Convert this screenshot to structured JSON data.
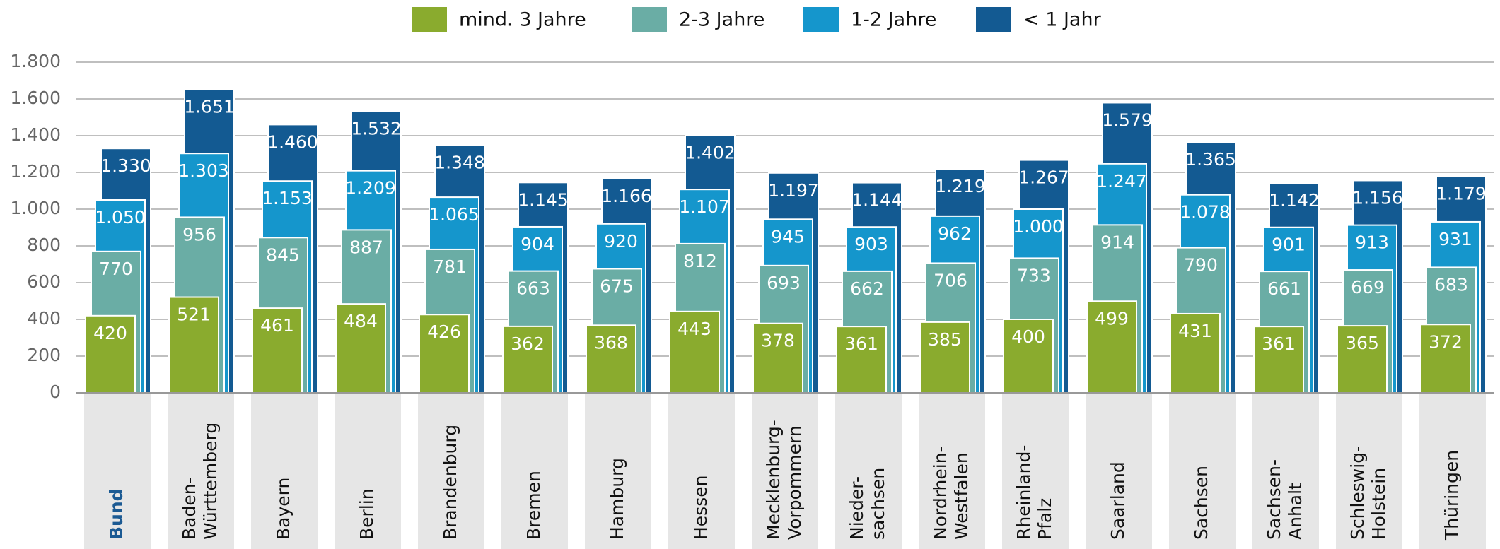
{
  "chart_data": {
    "type": "bar",
    "categories": [
      "Bund",
      "Baden-Württemberg",
      "Bayern",
      "Berlin",
      "Brandenburg",
      "Bremen",
      "Hamburg",
      "Hessen",
      "Mecklenburg-Vorpommern",
      "Nieder-sachsen",
      "Nordrhein-Westfalen",
      "Rheinland-Pfalz",
      "Saarland",
      "Sachsen",
      "Sachsen-Anhalt",
      "Schleswig-Holstein",
      "Thüringen"
    ],
    "series": [
      {
        "name": "mind. 3 Jahre",
        "color": "#8aab2e",
        "values": [
          420,
          521,
          461,
          484,
          426,
          362,
          368,
          443,
          378,
          361,
          385,
          400,
          499,
          431,
          361,
          365,
          372
        ],
        "value_labels": [
          "420",
          "521",
          "461",
          "484",
          "426",
          "362",
          "368",
          "443",
          "378",
          "361",
          "385",
          "400",
          "499",
          "431",
          "361",
          "365",
          "372"
        ]
      },
      {
        "name": "2-3 Jahre",
        "color": "#6aada5",
        "values": [
          770,
          956,
          845,
          887,
          781,
          663,
          675,
          812,
          693,
          662,
          706,
          733,
          914,
          790,
          661,
          669,
          683
        ],
        "value_labels": [
          "770",
          "956",
          "845",
          "887",
          "781",
          "663",
          "675",
          "812",
          "693",
          "662",
          "706",
          "733",
          "914",
          "790",
          "661",
          "669",
          "683"
        ]
      },
      {
        "name": "1-2 Jahre",
        "color": "#1596cc",
        "values": [
          1050,
          1303,
          1153,
          1209,
          1065,
          904,
          920,
          1107,
          945,
          903,
          962,
          1000,
          1247,
          1078,
          901,
          913,
          931
        ],
        "value_labels": [
          "1.050",
          "1.303",
          "1.153",
          "1.209",
          "1.065",
          "904",
          "920",
          "1.107",
          "945",
          "903",
          "962",
          "1.000",
          "1.247",
          "1.078",
          "901",
          "913",
          "931"
        ]
      },
      {
        "name": "< 1 Jahr",
        "color": "#135a92",
        "values": [
          1330,
          1651,
          1460,
          1532,
          1348,
          1145,
          1166,
          1402,
          1197,
          1144,
          1219,
          1267,
          1579,
          1365,
          1142,
          1156,
          1179
        ],
        "value_labels": [
          "1.330",
          "1.651",
          "1.460",
          "1.532",
          "1.348",
          "1.145",
          "1.166",
          "1.402",
          "1.197",
          "1.144",
          "1.219",
          "1.267",
          "1.579",
          "1.365",
          "1.142",
          "1.156",
          "1.179"
        ]
      }
    ],
    "ylim": [
      0,
      1800
    ],
    "yticks": [
      0,
      200,
      400,
      600,
      800,
      {
        "value": 1000,
        "label": "1.000"
      },
      {
        "value": 1200,
        "label": "1.200"
      },
      {
        "value": 1400,
        "label": "1.400"
      },
      {
        "value": 1600,
        "label": "1.600"
      },
      {
        "value": 1800,
        "label": "1.800"
      }
    ],
    "grid": true,
    "legend": "top"
  }
}
